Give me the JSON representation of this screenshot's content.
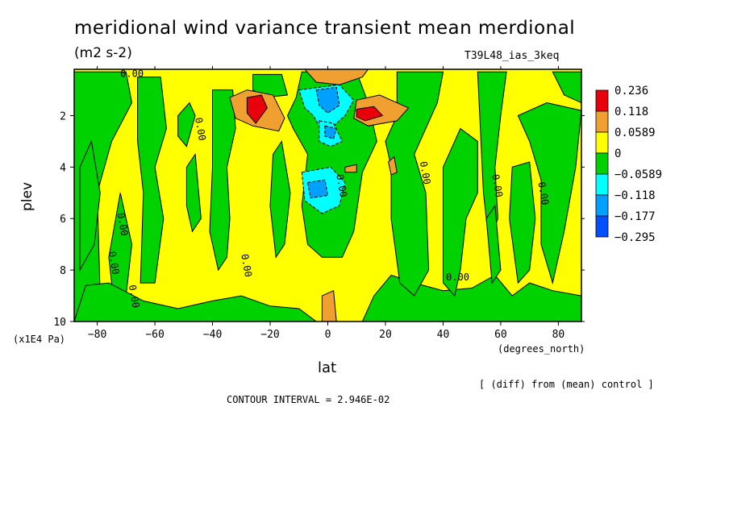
{
  "chart_data": {
    "type": "heatmap",
    "title": "meridional wind variance transient mean merdional",
    "units": "(m2 s-2)",
    "run_label": "T39L48_ias_3keq",
    "xlabel": "lat",
    "xunit": "(degrees_north)",
    "ylabel": "plev",
    "yunit": "(x1E4 Pa)",
    "xlim": [
      -88,
      88
    ],
    "ylim": [
      10,
      0.2
    ],
    "x_ticks": [
      -80,
      -60,
      -40,
      -20,
      0,
      20,
      40,
      60,
      80
    ],
    "y_ticks": [
      2,
      4,
      6,
      8,
      10
    ],
    "note": "[ (diff) from (mean) control ]",
    "contour_interval": "CONTOUR INTERVAL = 2.946E-02",
    "contour_label": "0.00",
    "legend": {
      "placement": "right",
      "levels": [
        "0.236",
        "0.118",
        "0.0589",
        "0",
        "−0.0589",
        "−0.118",
        "−0.177",
        "−0.295"
      ],
      "colors": [
        "#e8000b",
        "#f0a030",
        "#ffff00",
        "#00d200",
        "#00ffff",
        "#00a0ff",
        "#0050ff"
      ]
    },
    "background_fill": "#ffff00",
    "regions": [
      {
        "value": "neg",
        "color": "#00d200",
        "poly": [
          [
            -88,
            0.3
          ],
          [
            -70,
            0.3
          ],
          [
            -68,
            1.5
          ],
          [
            -75,
            3
          ],
          [
            -80,
            5
          ],
          [
            -79,
            9
          ],
          [
            -88,
            10
          ]
        ]
      },
      {
        "value": "neg",
        "color": "#00d200",
        "poly": [
          [
            -86,
            4
          ],
          [
            -82,
            3
          ],
          [
            -79,
            5
          ],
          [
            -81,
            7
          ],
          [
            -86,
            8
          ]
        ]
      },
      {
        "value": "neg",
        "color": "#00d200",
        "poly": [
          [
            -76,
            7.5
          ],
          [
            -72,
            5
          ],
          [
            -68,
            7
          ],
          [
            -70,
            9
          ],
          [
            -74,
            9.5
          ]
        ]
      },
      {
        "value": "neg",
        "color": "#00d200",
        "poly": [
          [
            -66,
            0.5
          ],
          [
            -58,
            0.5
          ],
          [
            -56,
            2.5
          ],
          [
            -60,
            4
          ],
          [
            -57,
            6
          ],
          [
            -60,
            8.5
          ],
          [
            -65,
            8.5
          ],
          [
            -64,
            5
          ],
          [
            -66,
            3
          ]
        ]
      },
      {
        "value": "neg",
        "color": "#00d200",
        "poly": [
          [
            -52,
            2
          ],
          [
            -48,
            1.5
          ],
          [
            -46,
            2
          ],
          [
            -49,
            3.2
          ],
          [
            -52,
            2.8
          ]
        ]
      },
      {
        "value": "neg",
        "color": "#00d200",
        "poly": [
          [
            -49,
            4
          ],
          [
            -46,
            3.5
          ],
          [
            -44,
            6
          ],
          [
            -47,
            6.5
          ],
          [
            -49,
            5.5
          ]
        ]
      },
      {
        "value": "neg",
        "color": "#00d200",
        "poly": [
          [
            -40,
            1
          ],
          [
            -33,
            1
          ],
          [
            -32,
            2.5
          ],
          [
            -35,
            4
          ],
          [
            -34,
            6
          ],
          [
            -35,
            7.5
          ],
          [
            -38,
            8
          ],
          [
            -41,
            6.5
          ],
          [
            -40,
            4
          ]
        ]
      },
      {
        "value": "neg",
        "color": "#00d200",
        "poly": [
          [
            -26,
            0.4
          ],
          [
            -16,
            0.4
          ],
          [
            -14,
            1.2
          ],
          [
            -22,
            1.3
          ],
          [
            -26,
            1
          ]
        ]
      },
      {
        "value": "neg",
        "color": "#00d200",
        "poly": [
          [
            -19,
            3.5
          ],
          [
            -16,
            3
          ],
          [
            -13,
            5
          ],
          [
            -15,
            7
          ],
          [
            -18,
            7.5
          ],
          [
            -20,
            5.5
          ]
        ]
      },
      {
        "value": "neg",
        "color": "#00d200",
        "poly": [
          [
            -9,
            0.3
          ],
          [
            10,
            0.3
          ],
          [
            14,
            1.5
          ],
          [
            17,
            3
          ],
          [
            12,
            4.2
          ],
          [
            9,
            6.5
          ],
          [
            5,
            7.5
          ],
          [
            -2,
            7.5
          ],
          [
            -7,
            7
          ],
          [
            -9,
            5.5
          ],
          [
            -7,
            3.5
          ],
          [
            -12,
            2.5
          ],
          [
            -14,
            2
          ],
          [
            -11,
            1.3
          ]
        ]
      },
      {
        "value": "neg",
        "color": "#00d200",
        "poly": [
          [
            -84,
            8.6
          ],
          [
            -76,
            8.5
          ],
          [
            -64,
            9.2
          ],
          [
            -52,
            9.5
          ],
          [
            -40,
            9.2
          ],
          [
            -30,
            9
          ],
          [
            -20,
            9.4
          ],
          [
            -10,
            9.5
          ],
          [
            -4,
            10
          ],
          [
            -88,
            10
          ]
        ]
      },
      {
        "value": "neg",
        "color": "#00d200",
        "poly": [
          [
            12,
            10
          ],
          [
            16,
            9
          ],
          [
            22,
            8.2
          ],
          [
            30,
            8.5
          ],
          [
            40,
            8.8
          ],
          [
            50,
            8.7
          ],
          [
            58,
            8.2
          ],
          [
            64,
            9
          ],
          [
            70,
            8.5
          ],
          [
            78,
            8.8
          ],
          [
            88,
            9
          ],
          [
            88,
            10
          ]
        ]
      },
      {
        "value": "neg",
        "color": "#00d200",
        "poly": [
          [
            24,
            0.3
          ],
          [
            40,
            0.3
          ],
          [
            38,
            1.5
          ],
          [
            34,
            2.5
          ],
          [
            30,
            3.5
          ],
          [
            34,
            5
          ],
          [
            35,
            8
          ],
          [
            30,
            9
          ],
          [
            25,
            8.5
          ],
          [
            22,
            6
          ],
          [
            22,
            4
          ],
          [
            20,
            3
          ],
          [
            24,
            2
          ]
        ]
      },
      {
        "value": "neg",
        "color": "#00d200",
        "poly": [
          [
            40,
            4
          ],
          [
            46,
            2.5
          ],
          [
            52,
            3
          ],
          [
            52,
            5
          ],
          [
            48,
            6
          ],
          [
            46,
            8
          ],
          [
            44,
            9
          ],
          [
            40,
            8.5
          ]
        ]
      },
      {
        "value": "neg",
        "color": "#00d200",
        "poly": [
          [
            52,
            0.3
          ],
          [
            62,
            0.3
          ],
          [
            60,
            2
          ],
          [
            58,
            4
          ],
          [
            59,
            6
          ],
          [
            56,
            7
          ],
          [
            54,
            5
          ]
        ]
      },
      {
        "value": "neg",
        "color": "#00d200",
        "poly": [
          [
            55,
            6
          ],
          [
            58,
            5.5
          ],
          [
            60,
            8
          ],
          [
            57,
            8.5
          ]
        ]
      },
      {
        "value": "neg",
        "color": "#00d200",
        "poly": [
          [
            66,
            2
          ],
          [
            76,
            1.5
          ],
          [
            88,
            1.8
          ],
          [
            86,
            4
          ],
          [
            82,
            6.5
          ],
          [
            78,
            8.5
          ],
          [
            74,
            7
          ],
          [
            74,
            4.5
          ],
          [
            70,
            3
          ]
        ]
      },
      {
        "value": "neg",
        "color": "#00d200",
        "poly": [
          [
            78,
            0.3
          ],
          [
            88,
            0.3
          ],
          [
            88,
            1.5
          ],
          [
            82,
            1.2
          ]
        ]
      },
      {
        "value": "neg",
        "color": "#00d200",
        "poly": [
          [
            64,
            4
          ],
          [
            70,
            3.8
          ],
          [
            72,
            6
          ],
          [
            70,
            8
          ],
          [
            66,
            8.5
          ],
          [
            63,
            6
          ]
        ]
      },
      {
        "value": "neg",
        "color": "#00ffff",
        "poly": [
          [
            -10,
            1
          ],
          [
            4,
            0.8
          ],
          [
            9,
            1.4
          ],
          [
            6,
            2
          ],
          [
            2,
            2.4
          ],
          [
            -2,
            2.6
          ],
          [
            -5,
            2
          ],
          [
            -8,
            1.7
          ]
        ]
      },
      {
        "value": "neg",
        "color": "#00ffff",
        "poly": [
          [
            -3,
            2.2
          ],
          [
            2,
            2.3
          ],
          [
            5,
            3
          ],
          [
            1,
            3.2
          ],
          [
            -3,
            3
          ]
        ]
      },
      {
        "value": "neg",
        "color": "#00ffff",
        "poly": [
          [
            -9,
            4.2
          ],
          [
            1,
            4
          ],
          [
            6,
            4.6
          ],
          [
            4,
            5.5
          ],
          [
            -2,
            5.8
          ],
          [
            -8,
            5.3
          ]
        ]
      },
      {
        "value": "neg",
        "color": "#00a0ff",
        "poly": [
          [
            -4,
            1
          ],
          [
            3,
            0.9
          ],
          [
            4,
            1.6
          ],
          [
            0,
            1.9
          ],
          [
            -3,
            1.6
          ]
        ]
      },
      {
        "value": "neg",
        "color": "#00a0ff",
        "poly": [
          [
            -1,
            2.4
          ],
          [
            3,
            2.5
          ],
          [
            2,
            2.9
          ],
          [
            -1,
            2.8
          ]
        ]
      },
      {
        "value": "neg",
        "color": "#00a0ff",
        "poly": [
          [
            -7,
            4.6
          ],
          [
            -1,
            4.5
          ],
          [
            0,
            5.1
          ],
          [
            -6,
            5.2
          ]
        ]
      },
      {
        "value": "pos",
        "color": "#f0a030",
        "poly": [
          [
            -34,
            1.3
          ],
          [
            -28,
            1.0
          ],
          [
            -19,
            1.2
          ],
          [
            -15,
            2.1
          ],
          [
            -17,
            2.6
          ],
          [
            -26,
            2.4
          ],
          [
            -32,
            2.1
          ]
        ]
      },
      {
        "value": "pos",
        "color": "#f0a030",
        "poly": [
          [
            10,
            1.4
          ],
          [
            18,
            1.2
          ],
          [
            28,
            1.7
          ],
          [
            24,
            2.2
          ],
          [
            14,
            2.4
          ],
          [
            9,
            2.1
          ]
        ]
      },
      {
        "value": "pos",
        "color": "#f0a030",
        "poly": [
          [
            -8,
            0.2
          ],
          [
            14,
            0.2
          ],
          [
            12,
            0.5
          ],
          [
            4,
            0.8
          ],
          [
            -4,
            0.7
          ]
        ]
      },
      {
        "value": "pos",
        "color": "#f0a030",
        "poly": [
          [
            -2,
            9
          ],
          [
            2,
            8.8
          ],
          [
            3,
            10
          ],
          [
            -2,
            10
          ]
        ]
      },
      {
        "value": "pos",
        "color": "#f0a030",
        "poly": [
          [
            6,
            4.0
          ],
          [
            10,
            3.9
          ],
          [
            10,
            4.2
          ],
          [
            6,
            4.2
          ]
        ]
      },
      {
        "value": "pos",
        "color": "#f0a030",
        "poly": [
          [
            21,
            3.8
          ],
          [
            23,
            3.6
          ],
          [
            24,
            4.2
          ],
          [
            22,
            4.3
          ]
        ]
      },
      {
        "value": "pos",
        "color": "#e8000b",
        "poly": [
          [
            -28,
            1.3
          ],
          [
            -23,
            1.2
          ],
          [
            -21,
            1.7
          ],
          [
            -25,
            2.3
          ],
          [
            -28,
            1.9
          ]
        ]
      },
      {
        "value": "pos",
        "color": "#e8000b",
        "poly": [
          [
            10,
            1.75
          ],
          [
            16,
            1.65
          ],
          [
            19,
            2.0
          ],
          [
            13,
            2.2
          ],
          [
            10,
            2.05
          ]
        ]
      }
    ],
    "contour_label_positions": [
      [
        -72,
        0.5
      ],
      [
        -46,
        2.1
      ],
      [
        -73,
        5.8
      ],
      [
        -76,
        7.3
      ],
      [
        -69,
        8.6
      ],
      [
        -30,
        7.4
      ],
      [
        3,
        4.3
      ],
      [
        32,
        3.8
      ],
      [
        57,
        4.3
      ],
      [
        73,
        4.6
      ],
      [
        41,
        8.4
      ]
    ]
  }
}
